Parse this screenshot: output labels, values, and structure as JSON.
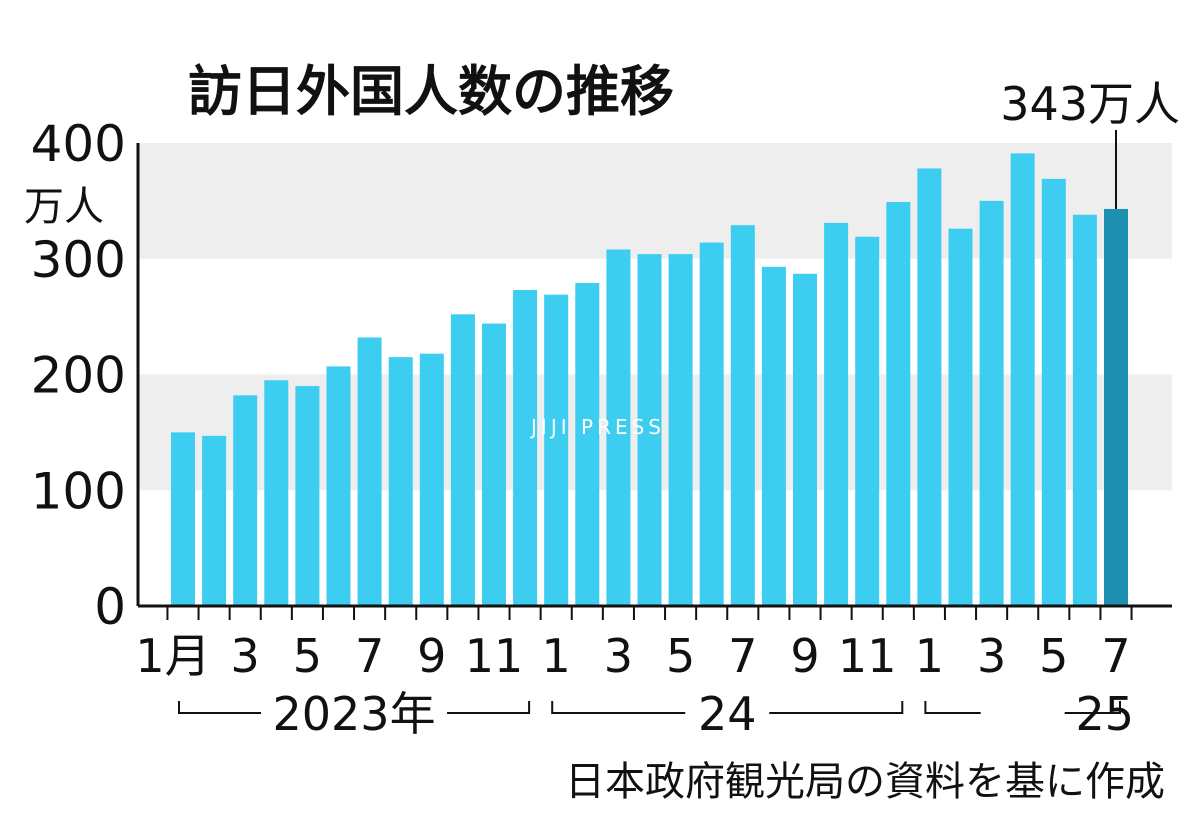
{
  "chart_data": {
    "type": "bar",
    "title": "訪日外国人数の推移",
    "y_unit": "万人",
    "ylim": [
      0,
      400
    ],
    "yticks": [
      "0",
      "100",
      "200",
      "300",
      "400"
    ],
    "categories": [
      "2023-01",
      "2023-02",
      "2023-03",
      "2023-04",
      "2023-05",
      "2023-06",
      "2023-07",
      "2023-08",
      "2023-09",
      "2023-10",
      "2023-11",
      "2023-12",
      "2024-01",
      "2024-02",
      "2024-03",
      "2024-04",
      "2024-05",
      "2024-06",
      "2024-07",
      "2024-08",
      "2024-09",
      "2024-10",
      "2024-11",
      "2024-12",
      "2025-01",
      "2025-02",
      "2025-03",
      "2025-04",
      "2025-05",
      "2025-06",
      "2025-07"
    ],
    "values": [
      150,
      147,
      182,
      195,
      190,
      207,
      232,
      215,
      218,
      252,
      244,
      273,
      269,
      279,
      308,
      304,
      304,
      314,
      329,
      293,
      287,
      331,
      319,
      349,
      378,
      326,
      350,
      391,
      369,
      338,
      343
    ],
    "x_tick_labels": [
      {
        "index": 0,
        "label": "1月"
      },
      {
        "index": 2,
        "label": "3"
      },
      {
        "index": 4,
        "label": "5"
      },
      {
        "index": 6,
        "label": "7"
      },
      {
        "index": 8,
        "label": "9"
      },
      {
        "index": 10,
        "label": "11"
      },
      {
        "index": 12,
        "label": "1"
      },
      {
        "index": 14,
        "label": "3"
      },
      {
        "index": 16,
        "label": "5"
      },
      {
        "index": 18,
        "label": "7"
      },
      {
        "index": 20,
        "label": "9"
      },
      {
        "index": 22,
        "label": "11"
      },
      {
        "index": 24,
        "label": "1"
      },
      {
        "index": 26,
        "label": "3"
      },
      {
        "index": 28,
        "label": "5"
      },
      {
        "index": 30,
        "label": "7"
      }
    ],
    "year_groups": [
      {
        "label": "2023年",
        "start": 0,
        "end": 11
      },
      {
        "label": "24",
        "start": 12,
        "end": 23
      },
      {
        "label": "25",
        "start": 24,
        "end": 30
      }
    ],
    "highlight": {
      "index": 30,
      "label": "343万人"
    },
    "colors": {
      "bar": "#3ccdf0",
      "highlight": "#1e8fb0",
      "band": "#eeeeee",
      "axis": "#111111"
    },
    "grid": "alternating-bands",
    "legend": "none"
  },
  "source_note": "日本政府観光局の資料を基に作成",
  "watermark": "JIJI PRESS"
}
